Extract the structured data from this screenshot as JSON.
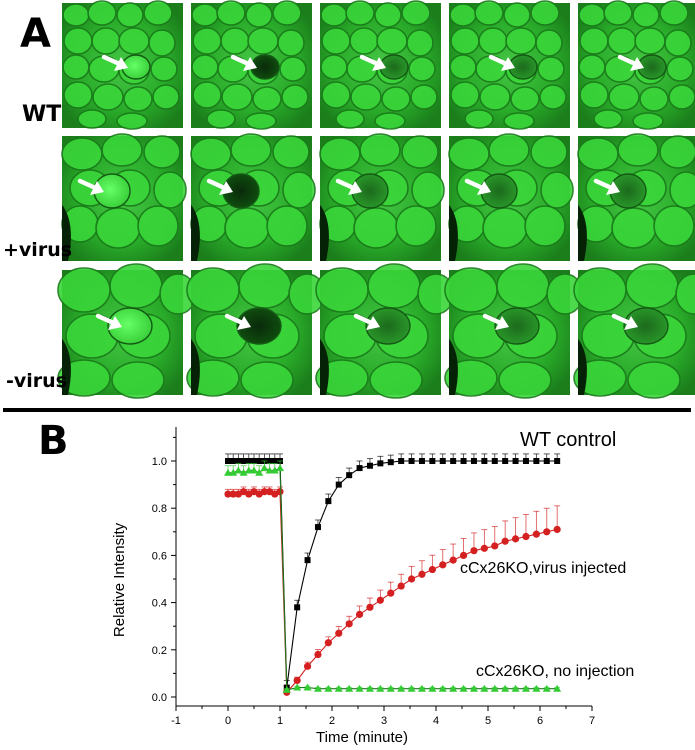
{
  "panel_a": {
    "letter": "A",
    "rows": [
      {
        "label": "WT"
      },
      {
        "label": "+virus"
      },
      {
        "label": "-virus"
      }
    ]
  },
  "chart_data": {
    "type": "line",
    "panel_letter": "B",
    "title": "",
    "xlabel": "Time (minute)",
    "ylabel": "Relative Intensity",
    "xlim": [
      -1,
      7
    ],
    "ylim": [
      0,
      1.1
    ],
    "xticks": [
      "-1",
      "0",
      "1",
      "2",
      "3",
      "4",
      "5",
      "6",
      "7"
    ],
    "yticks": [
      "0.0",
      "0.2",
      "0.4",
      "0.6",
      "0.8",
      "1.0"
    ],
    "series": [
      {
        "name": "WT control",
        "color": "#000000",
        "marker": "square",
        "x": [
          0,
          0.1,
          0.2,
          0.3,
          0.4,
          0.5,
          0.6,
          0.7,
          0.8,
          0.9,
          1.0,
          1.13,
          1.33,
          1.53,
          1.73,
          1.93,
          2.13,
          2.33,
          2.53,
          2.73,
          2.93,
          3.13,
          3.33,
          3.53,
          3.73,
          3.93,
          4.13,
          4.33,
          4.53,
          4.73,
          4.93,
          5.13,
          5.33,
          5.53,
          5.73,
          5.93,
          6.13,
          6.33
        ],
        "y": [
          1.0,
          1.0,
          1.0,
          1.0,
          1.0,
          1.0,
          1.0,
          1.0,
          1.0,
          1.0,
          1.0,
          0.04,
          0.38,
          0.58,
          0.72,
          0.83,
          0.9,
          0.94,
          0.97,
          0.98,
          0.99,
          0.995,
          1.0,
          1.0,
          1.0,
          1.0,
          1.0,
          1.0,
          1.0,
          1.0,
          1.0,
          1.0,
          1.0,
          1.0,
          1.0,
          1.0,
          1.0,
          1.0
        ]
      },
      {
        "name": "cCx26KO,virus injected",
        "color": "#d42020",
        "marker": "circle",
        "x": [
          0,
          0.1,
          0.2,
          0.3,
          0.4,
          0.5,
          0.6,
          0.7,
          0.8,
          0.9,
          1.0,
          1.13,
          1.33,
          1.53,
          1.73,
          1.93,
          2.13,
          2.33,
          2.53,
          2.73,
          2.93,
          3.13,
          3.33,
          3.53,
          3.73,
          3.93,
          4.13,
          4.33,
          4.53,
          4.73,
          4.93,
          5.13,
          5.33,
          5.53,
          5.73,
          5.93,
          6.13,
          6.33
        ],
        "y": [
          0.86,
          0.86,
          0.86,
          0.87,
          0.86,
          0.87,
          0.86,
          0.87,
          0.87,
          0.86,
          0.87,
          0.02,
          0.07,
          0.13,
          0.18,
          0.23,
          0.27,
          0.31,
          0.35,
          0.38,
          0.41,
          0.44,
          0.47,
          0.5,
          0.52,
          0.54,
          0.56,
          0.58,
          0.6,
          0.62,
          0.63,
          0.64,
          0.66,
          0.67,
          0.68,
          0.69,
          0.7,
          0.71
        ]
      },
      {
        "name": "cCx26KO, no injection",
        "color": "#33cc33",
        "marker": "triangle",
        "x": [
          0,
          0.1,
          0.2,
          0.3,
          0.4,
          0.5,
          0.6,
          0.7,
          0.8,
          0.9,
          1.0,
          1.13,
          1.33,
          1.53,
          1.73,
          1.93,
          2.13,
          2.33,
          2.53,
          2.73,
          2.93,
          3.13,
          3.33,
          3.53,
          3.73,
          3.93,
          4.13,
          4.33,
          4.53,
          4.73,
          4.93,
          5.13,
          5.33,
          5.53,
          5.73,
          5.93,
          6.13,
          6.33
        ],
        "y": [
          0.95,
          0.95,
          0.96,
          0.95,
          0.96,
          0.96,
          0.95,
          0.97,
          0.96,
          0.96,
          0.97,
          0.03,
          0.04,
          0.04,
          0.035,
          0.035,
          0.035,
          0.035,
          0.035,
          0.035,
          0.035,
          0.035,
          0.035,
          0.035,
          0.035,
          0.035,
          0.035,
          0.035,
          0.035,
          0.035,
          0.035,
          0.035,
          0.035,
          0.035,
          0.035,
          0.035,
          0.035,
          0.035
        ]
      }
    ]
  }
}
